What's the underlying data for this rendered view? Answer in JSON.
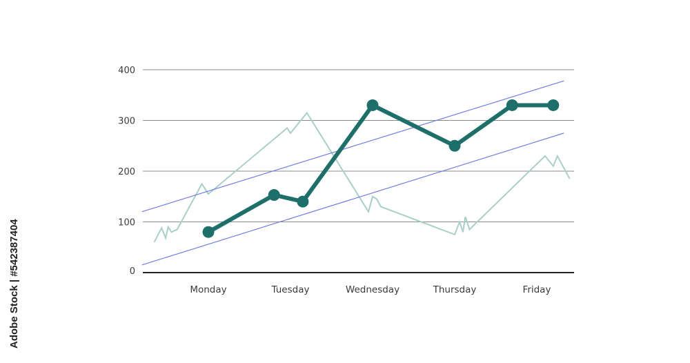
{
  "side_caption": "Adobe Stock | #542387404",
  "colors": {
    "main_line": "#1e6e6a",
    "background_line": "#a9cfc8",
    "trend_line": "#6f7fe0",
    "grid": "#8a8a8a",
    "axis": "#222222"
  },
  "chart_data": {
    "type": "line",
    "categories": [
      "Monday",
      "Tuesday",
      "Wednesday",
      "Thursday",
      "Friday"
    ],
    "ylim": [
      0,
      400
    ],
    "yticks": [
      0,
      100,
      200,
      300,
      400
    ],
    "grid": true,
    "title": "",
    "xlabel": "",
    "ylabel": "",
    "series": [
      {
        "role": "main",
        "x": [
          0,
          0.8,
          1.15,
          2,
          3,
          3.7,
          4.2
        ],
        "y": [
          80,
          153,
          140,
          330,
          250,
          330,
          330
        ],
        "markers": true
      },
      {
        "role": "background",
        "x": [
          -0.66,
          -0.57,
          -0.52,
          -0.49,
          -0.45,
          -0.38,
          -0.08,
          0.0,
          0.96,
          1.0,
          1.2,
          1.95,
          2.0,
          2.05,
          2.1,
          3.0,
          3.06,
          3.1,
          3.13,
          3.18,
          4.1,
          4.2,
          4.25,
          4.4
        ],
        "y": [
          60,
          88,
          68,
          90,
          80,
          85,
          175,
          155,
          285,
          275,
          315,
          120,
          150,
          145,
          130,
          75,
          100,
          80,
          110,
          85,
          230,
          210,
          230,
          185
        ]
      },
      {
        "role": "trend-upper",
        "x": [
          -0.81,
          4.33
        ],
        "y": [
          120,
          378
        ]
      },
      {
        "role": "trend-lower",
        "x": [
          -0.81,
          4.33
        ],
        "y": [
          15,
          275
        ]
      }
    ]
  }
}
